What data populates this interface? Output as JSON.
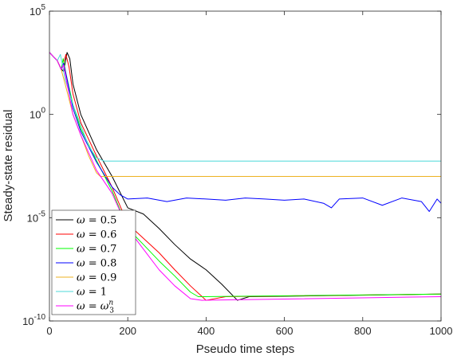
{
  "chart_data": {
    "type": "line",
    "xlabel": "Pseudo time steps",
    "ylabel": "Steady-state residual",
    "xlim": [
      0,
      1000
    ],
    "ylim": [
      1e-10,
      100000
    ],
    "yscale": "log",
    "xticks": [
      0,
      200,
      400,
      600,
      800,
      1000
    ],
    "xtick_labels": [
      "0",
      "200",
      "400",
      "600",
      "800",
      "1000"
    ],
    "ytick_labels": [
      {
        "base": "10",
        "exp": "5"
      },
      {
        "base": "10",
        "exp": "0"
      },
      {
        "base": "10",
        "exp": "-5"
      },
      {
        "base": "10",
        "exp": "-10"
      }
    ],
    "grid": false,
    "legend_position": "bottom-left",
    "series": [
      {
        "name": "ω = 0.5",
        "label": {
          "sym": "ω",
          "rel": " = ",
          "val": "0.5"
        },
        "color": "#000000",
        "points": [
          [
            0,
            1000
          ],
          [
            20,
            400
          ],
          [
            30,
            160
          ],
          [
            36,
            120
          ],
          [
            40,
            300
          ],
          [
            45,
            1000
          ],
          [
            52,
            500
          ],
          [
            60,
            30
          ],
          [
            80,
            1
          ],
          [
            120,
            0.02
          ],
          [
            160,
            0.001
          ],
          [
            200,
            3e-05
          ],
          [
            240,
            1.5e-05
          ],
          [
            280,
            3e-06
          ],
          [
            320,
            5e-07
          ],
          [
            360,
            1e-07
          ],
          [
            400,
            3e-08
          ],
          [
            440,
            6e-09
          ],
          [
            480,
            1e-09
          ],
          [
            510,
            1.5e-09
          ],
          [
            1000,
            2e-09
          ]
        ]
      },
      {
        "name": "ω = 0.6",
        "label": {
          "sym": "ω",
          "rel": " = ",
          "val": "0.6"
        },
        "color": "#ff0000",
        "points": [
          [
            0,
            1000
          ],
          [
            20,
            400
          ],
          [
            30,
            150
          ],
          [
            36,
            300
          ],
          [
            42,
            800
          ],
          [
            50,
            200
          ],
          [
            60,
            10
          ],
          [
            80,
            0.4
          ],
          [
            120,
            0.01
          ],
          [
            160,
            0.0003
          ],
          [
            200,
            5e-06
          ],
          [
            240,
            1e-06
          ],
          [
            280,
            2e-07
          ],
          [
            320,
            3e-08
          ],
          [
            360,
            5e-09
          ],
          [
            400,
            1e-09
          ],
          [
            450,
            1.5e-09
          ],
          [
            1000,
            2e-09
          ]
        ]
      },
      {
        "name": "ω = 0.7",
        "label": {
          "sym": "ω",
          "rel": " = ",
          "val": "0.7"
        },
        "color": "#00ff00",
        "points": [
          [
            0,
            1000
          ],
          [
            20,
            400
          ],
          [
            30,
            150
          ],
          [
            35,
            500
          ],
          [
            42,
            100
          ],
          [
            60,
            3
          ],
          [
            80,
            0.2
          ],
          [
            120,
            0.006
          ],
          [
            160,
            0.0002
          ],
          [
            200,
            3e-06
          ],
          [
            240,
            5e-07
          ],
          [
            280,
            8e-08
          ],
          [
            320,
            1.5e-08
          ],
          [
            360,
            2.5e-09
          ],
          [
            380,
            1.5e-09
          ],
          [
            1000,
            2e-09
          ]
        ]
      },
      {
        "name": "ω = 0.8",
        "label": {
          "sym": "ω",
          "rel": " = ",
          "val": "0.8"
        },
        "color": "#0000ff",
        "points": [
          [
            0,
            1000
          ],
          [
            20,
            400
          ],
          [
            30,
            150
          ],
          [
            36,
            300
          ],
          [
            45,
            50
          ],
          [
            60,
            2
          ],
          [
            80,
            0.15
          ],
          [
            120,
            0.005
          ],
          [
            160,
            0.0003
          ],
          [
            180,
            0.00013
          ],
          [
            200,
            8e-05
          ],
          [
            250,
            9e-05
          ],
          [
            300,
            6e-05
          ],
          [
            350,
            9e-05
          ],
          [
            400,
            8e-05
          ],
          [
            450,
            7e-05
          ],
          [
            500,
            9e-05
          ],
          [
            550,
            8e-05
          ],
          [
            600,
            7e-05
          ],
          [
            650,
            8e-05
          ],
          [
            700,
            5e-05
          ],
          [
            720,
            3e-05
          ],
          [
            740,
            8e-05
          ],
          [
            800,
            9e-05
          ],
          [
            850,
            4e-05
          ],
          [
            900,
            9e-05
          ],
          [
            950,
            6e-05
          ],
          [
            970,
            2e-05
          ],
          [
            990,
            8e-05
          ],
          [
            1000,
            5e-05
          ]
        ]
      },
      {
        "name": "ω = 0.9",
        "label": {
          "sym": "ω",
          "rel": " = ",
          "val": "0.9"
        },
        "color": "#edb120",
        "points": [
          [
            0,
            1000
          ],
          [
            20,
            400
          ],
          [
            30,
            150
          ],
          [
            40,
            30
          ],
          [
            60,
            1
          ],
          [
            80,
            0.1
          ],
          [
            100,
            0.01
          ],
          [
            120,
            0.0015
          ],
          [
            130,
            0.001
          ],
          [
            1000,
            0.001
          ]
        ]
      },
      {
        "name": "ω = 1",
        "label": {
          "sym": "ω",
          "rel": " = ",
          "val": "1"
        },
        "color": "#4dd8d8",
        "points": [
          [
            0,
            1000
          ],
          [
            20,
            400
          ],
          [
            28,
            800
          ],
          [
            40,
            50
          ],
          [
            60,
            3
          ],
          [
            80,
            0.3
          ],
          [
            100,
            0.03
          ],
          [
            120,
            0.008
          ],
          [
            140,
            0.0055
          ],
          [
            1000,
            0.0055
          ]
        ]
      },
      {
        "name": "ω = ω₃ⁿ",
        "label": {
          "sym": "ω",
          "rel": " = ",
          "val": "ω",
          "sup": "n",
          "sub": "3"
        },
        "color": "#ff00ff",
        "points": [
          [
            0,
            1000
          ],
          [
            20,
            400
          ],
          [
            30,
            150
          ],
          [
            36,
            250
          ],
          [
            45,
            30
          ],
          [
            60,
            1
          ],
          [
            80,
            0.1
          ],
          [
            120,
            0.002
          ],
          [
            160,
            0.00015
          ],
          [
            200,
            3e-06
          ],
          [
            240,
            3e-07
          ],
          [
            280,
            3e-08
          ],
          [
            320,
            5e-09
          ],
          [
            360,
            1.2e-09
          ],
          [
            390,
            1e-09
          ],
          [
            1000,
            1.5e-09
          ]
        ]
      }
    ]
  }
}
